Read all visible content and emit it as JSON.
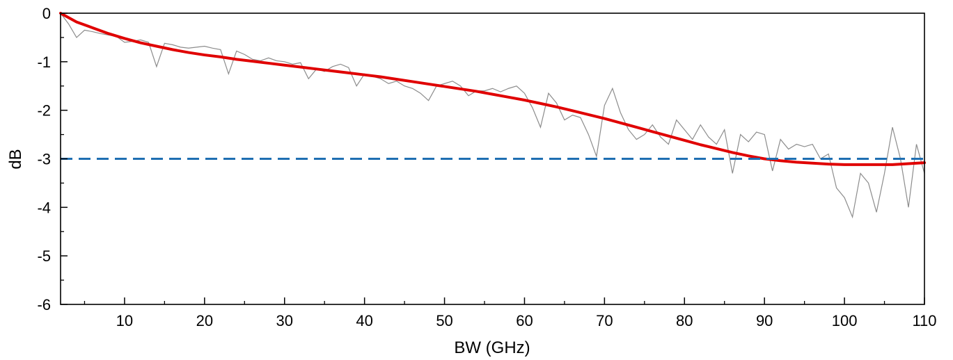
{
  "chart_data": {
    "type": "line",
    "title": "",
    "xlabel": "BW (GHz)",
    "ylabel": "dB",
    "xlim": [
      2,
      110
    ],
    "ylim": [
      -6,
      0
    ],
    "x_ticks": [
      10,
      20,
      30,
      40,
      50,
      60,
      70,
      80,
      90,
      100,
      110
    ],
    "y_ticks": [
      0,
      -1,
      -2,
      -3,
      -4,
      -5,
      -6
    ],
    "x_tick_labels": [
      "10",
      "20",
      "30",
      "40",
      "50",
      "60",
      "70",
      "80",
      "90",
      "100",
      "110"
    ],
    "y_tick_labels": [
      "0",
      "-1",
      "-2",
      "-3",
      "-4",
      "-5",
      "-6"
    ],
    "grid": false,
    "legend": "none",
    "series": [
      {
        "color": "#8c8c8c",
        "style": "thin-noisy",
        "x": [
          2,
          3,
          4,
          5,
          6,
          7,
          8,
          9,
          10,
          11,
          12,
          13,
          14,
          15,
          16,
          17,
          18,
          19,
          20,
          21,
          22,
          23,
          24,
          25,
          26,
          27,
          28,
          29,
          30,
          31,
          32,
          33,
          34,
          35,
          36,
          37,
          38,
          39,
          40,
          41,
          42,
          43,
          44,
          45,
          46,
          47,
          48,
          49,
          50,
          51,
          52,
          53,
          54,
          55,
          56,
          57,
          58,
          59,
          60,
          61,
          62,
          63,
          64,
          65,
          66,
          67,
          68,
          69,
          70,
          71,
          72,
          73,
          74,
          75,
          76,
          77,
          78,
          79,
          80,
          81,
          82,
          83,
          84,
          85,
          86,
          87,
          88,
          89,
          90,
          91,
          92,
          93,
          94,
          95,
          96,
          97,
          98,
          99,
          100,
          101,
          102,
          103,
          104,
          105,
          106,
          107,
          108,
          109,
          110
        ],
        "y": [
          0.0,
          -0.22,
          -0.5,
          -0.35,
          -0.38,
          -0.42,
          -0.45,
          -0.48,
          -0.6,
          -0.58,
          -0.55,
          -0.6,
          -1.1,
          -0.62,
          -0.65,
          -0.7,
          -0.72,
          -0.7,
          -0.68,
          -0.72,
          -0.75,
          -1.25,
          -0.78,
          -0.85,
          -0.95,
          -0.98,
          -0.92,
          -0.98,
          -1.0,
          -1.05,
          -1.02,
          -1.35,
          -1.15,
          -1.2,
          -1.1,
          -1.05,
          -1.12,
          -1.5,
          -1.25,
          -1.3,
          -1.35,
          -1.45,
          -1.4,
          -1.5,
          -1.55,
          -1.65,
          -1.8,
          -1.5,
          -1.45,
          -1.4,
          -1.5,
          -1.7,
          -1.6,
          -1.6,
          -1.55,
          -1.62,
          -1.55,
          -1.5,
          -1.65,
          -1.95,
          -2.35,
          -1.65,
          -1.85,
          -2.2,
          -2.1,
          -2.15,
          -2.5,
          -2.95,
          -1.9,
          -1.55,
          -2.05,
          -2.4,
          -2.6,
          -2.5,
          -2.3,
          -2.55,
          -2.7,
          -2.2,
          -2.4,
          -2.6,
          -2.3,
          -2.55,
          -2.7,
          -2.4,
          -3.3,
          -2.5,
          -2.65,
          -2.45,
          -2.5,
          -3.25,
          -2.6,
          -2.8,
          -2.7,
          -2.75,
          -2.7,
          -3.0,
          -2.9,
          -3.6,
          -3.8,
          -4.2,
          -3.3,
          -3.5,
          -4.1,
          -3.3,
          -2.35,
          -3.0,
          -4.0,
          -2.7,
          -3.3
        ]
      },
      {
        "color": "#e00000",
        "style": "thick-fit",
        "x": [
          2,
          4,
          6,
          8,
          10,
          12,
          14,
          16,
          18,
          20,
          22,
          24,
          26,
          28,
          30,
          32,
          34,
          36,
          38,
          40,
          42,
          44,
          46,
          48,
          50,
          52,
          54,
          56,
          58,
          60,
          62,
          64,
          66,
          68,
          70,
          72,
          74,
          76,
          78,
          80,
          82,
          84,
          86,
          88,
          90,
          92,
          94,
          96,
          98,
          100,
          102,
          104,
          106,
          108,
          110
        ],
        "y": [
          0.0,
          -0.18,
          -0.3,
          -0.42,
          -0.52,
          -0.61,
          -0.68,
          -0.75,
          -0.81,
          -0.86,
          -0.9,
          -0.95,
          -0.99,
          -1.03,
          -1.07,
          -1.11,
          -1.15,
          -1.19,
          -1.23,
          -1.27,
          -1.31,
          -1.36,
          -1.41,
          -1.46,
          -1.51,
          -1.56,
          -1.61,
          -1.67,
          -1.73,
          -1.79,
          -1.86,
          -1.93,
          -2.01,
          -2.09,
          -2.17,
          -2.26,
          -2.35,
          -2.44,
          -2.53,
          -2.62,
          -2.71,
          -2.79,
          -2.87,
          -2.94,
          -3.0,
          -3.04,
          -3.07,
          -3.09,
          -3.11,
          -3.12,
          -3.12,
          -3.12,
          -3.12,
          -3.1,
          -3.08
        ]
      },
      {
        "color": "#1f6fb2",
        "style": "dashed-reference",
        "x": [
          2,
          110
        ],
        "y": [
          -3,
          -3
        ]
      }
    ]
  }
}
